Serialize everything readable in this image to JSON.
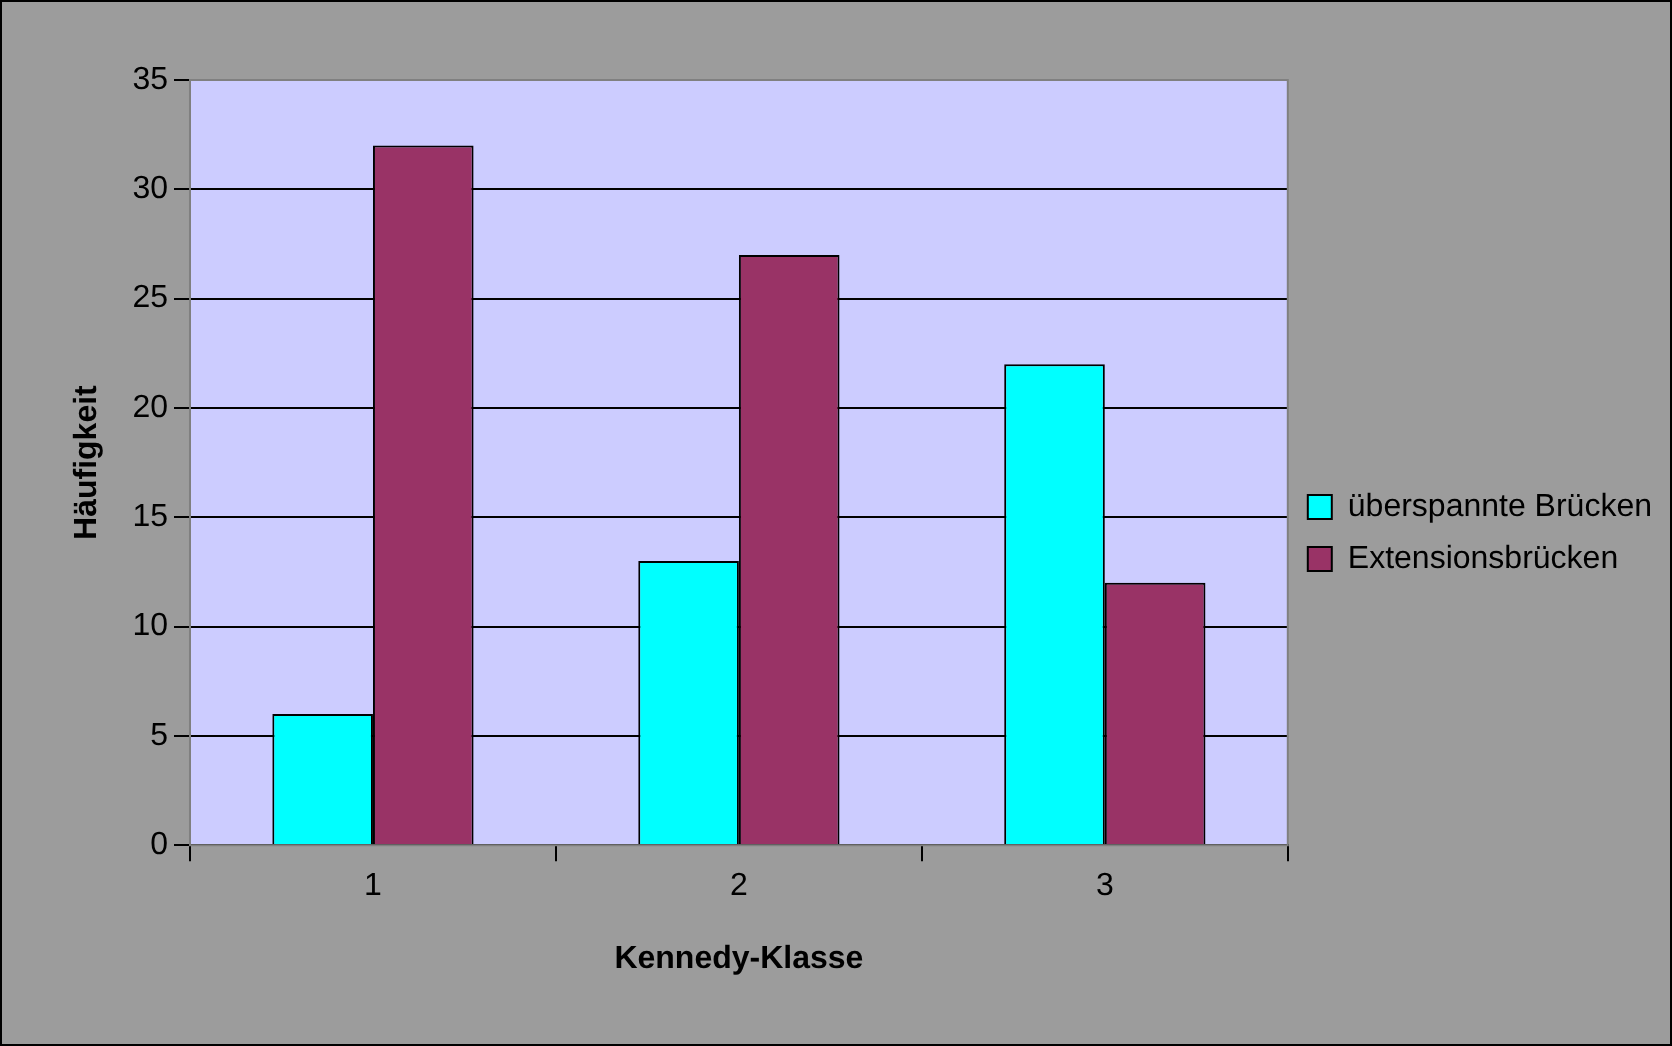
{
  "chart_data": {
    "type": "bar",
    "xlabel": "Kennedy-Klasse",
    "ylabel": "Häufigkeit",
    "categories": [
      "1",
      "2",
      "3"
    ],
    "series": [
      {
        "name": "überspannte Brücken",
        "color": "#00ffff",
        "values": [
          6,
          13,
          22
        ]
      },
      {
        "name": "Extensionsbrücken",
        "color": "#993366",
        "values": [
          32,
          27,
          12
        ]
      }
    ],
    "ylim": [
      0,
      35
    ],
    "yticks": [
      0,
      5,
      10,
      15,
      20,
      25,
      30,
      35
    ],
    "grid": "y",
    "legend": "right"
  }
}
